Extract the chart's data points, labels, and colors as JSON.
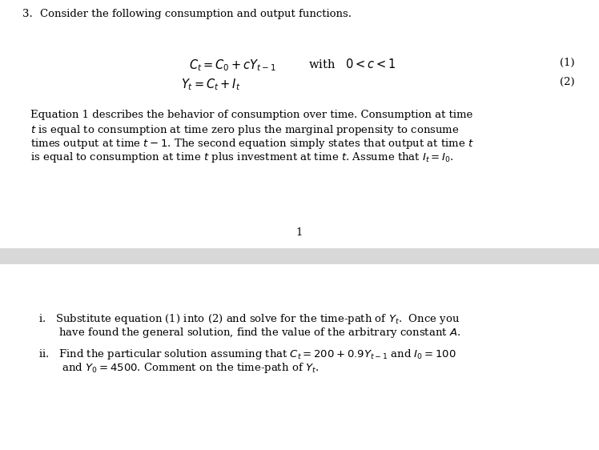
{
  "bg_color": "#ffffff",
  "separator_bg": "#d8d8d8",
  "font_size_main": 9.5,
  "font_size_eq": 10.5,
  "font_size_sub": 9.5
}
